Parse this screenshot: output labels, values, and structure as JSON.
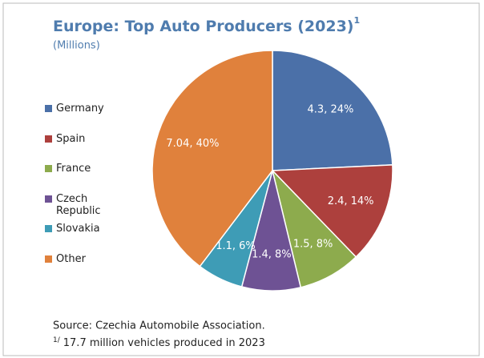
{
  "chart_data": {
    "type": "pie",
    "title": "Europe: Top Auto Producers (2023)",
    "title_superscript": "1",
    "subtitle": "(Millions)",
    "categories": [
      "Germany",
      "Spain",
      "France",
      "Czech Republic",
      "Slovakia",
      "Other"
    ],
    "values": [
      4.3,
      2.4,
      1.5,
      1.4,
      1.1,
      7.04
    ],
    "value_labels": [
      "4.3, 24%",
      "2.4, 14%",
      "1.5, 8%",
      "1.4, 8%",
      "1.1, 6%",
      "7.04, 40%"
    ],
    "colors": [
      "#4b70a8",
      "#ad403d",
      "#8dab4d",
      "#6e5294",
      "#3e9cb6",
      "#e0813c"
    ],
    "legend": "left",
    "source": "Source: Czechia Automobile Association.",
    "footnote_marker": "1/",
    "footnote": "17.7 million vehicles produced in 2023"
  }
}
